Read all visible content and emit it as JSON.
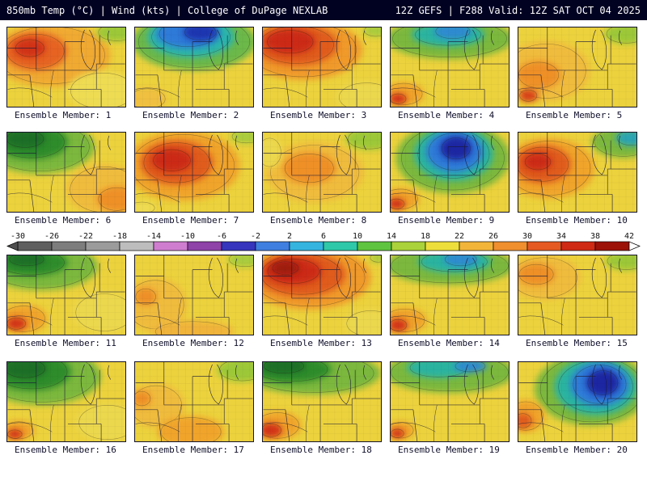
{
  "header": {
    "left": "850mb Temp (°C) | Wind (kts) | College of DuPage NEXLAB",
    "right": "12Z GEFS | F288 Valid: 12Z SAT OCT 04 2025"
  },
  "colorbar": {
    "unit": "°C",
    "ticks": [
      -30,
      -26,
      -22,
      -18,
      -14,
      -10,
      -6,
      -2,
      2,
      6,
      10,
      14,
      18,
      22,
      26,
      30,
      34,
      38,
      42
    ],
    "segment_colors": [
      "#5f5f5f",
      "#7d7d7d",
      "#9b9b9b",
      "#bdbdbd",
      "#cf7ecf",
      "#8f42a8",
      "#3535bd",
      "#3f7fe0",
      "#35b4e0",
      "#2fc8a8",
      "#5fc43f",
      "#aad23a",
      "#eede3c",
      "#f2b53a",
      "#ef8f2e",
      "#e55a22",
      "#cf2a14",
      "#9c1208"
    ],
    "left_arrow_color": "#4f4f4f",
    "right_arrow_color": "#ffffff"
  },
  "palette": {
    "base": "#ecd23c",
    "border_lines": "#1b1b38",
    "header_bg": "#010122",
    "caption_color": "#10102c"
  },
  "panels": [
    {
      "label": "Ensemble Member: 1",
      "blobs": [
        [
          55,
          35,
          75,
          40,
          "#f0aa30"
        ],
        [
          35,
          30,
          40,
          24,
          "#e66420"
        ],
        [
          28,
          26,
          20,
          12,
          "#d03014"
        ],
        [
          138,
          6,
          26,
          12,
          "#9cc838"
        ],
        [
          120,
          80,
          45,
          25,
          "#eedc52"
        ]
      ]
    },
    {
      "label": "Ensemble Member: 2",
      "blobs": [
        [
          74,
          18,
          78,
          36,
          "#6cb848"
        ],
        [
          70,
          12,
          55,
          26,
          "#2cb4ac"
        ],
        [
          66,
          8,
          40,
          18,
          "#2f7ad8"
        ],
        [
          82,
          6,
          22,
          11,
          "#1f35b0"
        ],
        [
          15,
          90,
          25,
          14,
          "#f0c040"
        ]
      ]
    },
    {
      "label": "Ensemble Member: 3",
      "blobs": [
        [
          50,
          28,
          75,
          38,
          "#f09a2c"
        ],
        [
          42,
          22,
          52,
          26,
          "#e05c1e"
        ],
        [
          34,
          18,
          32,
          16,
          "#cc2a12"
        ],
        [
          142,
          4,
          16,
          8,
          "#a8cc3c"
        ],
        [
          130,
          88,
          38,
          20,
          "#ecd84e"
        ]
      ]
    },
    {
      "label": "Ensemble Member: 4",
      "blobs": [
        [
          74,
          14,
          80,
          26,
          "#7cb83e"
        ],
        [
          72,
          9,
          46,
          15,
          "#2cb4a0"
        ],
        [
          78,
          5,
          24,
          10,
          "#2f8ad0"
        ],
        [
          16,
          84,
          26,
          15,
          "#f0a42c"
        ],
        [
          9,
          90,
          11,
          7,
          "#d23214"
        ]
      ]
    },
    {
      "label": "Ensemble Member: 5",
      "blobs": [
        [
          35,
          55,
          55,
          38,
          "#f0bc3e"
        ],
        [
          25,
          60,
          28,
          18,
          "#ee9026"
        ],
        [
          136,
          8,
          28,
          13,
          "#9cc838"
        ],
        [
          12,
          86,
          12,
          8,
          "#d84018"
        ]
      ]
    },
    {
      "label": "Ensemble Member: 6",
      "blobs": [
        [
          40,
          18,
          70,
          34,
          "#7cb83e"
        ],
        [
          30,
          12,
          46,
          22,
          "#2f8c2a"
        ],
        [
          22,
          8,
          26,
          12,
          "#1e6e26"
        ],
        [
          122,
          72,
          48,
          32,
          "#f0bc3e"
        ],
        [
          138,
          84,
          26,
          16,
          "#ee9026"
        ]
      ]
    },
    {
      "label": "Ensemble Member: 7",
      "blobs": [
        [
          60,
          42,
          72,
          44,
          "#f0a42c"
        ],
        [
          52,
          38,
          46,
          28,
          "#e05c1e"
        ],
        [
          46,
          35,
          26,
          15,
          "#cc2a12"
        ],
        [
          140,
          5,
          20,
          9,
          "#a8cc3c"
        ],
        [
          8,
          95,
          18,
          8,
          "#eedc52"
        ]
      ]
    },
    {
      "label": "Ensemble Member: 8",
      "blobs": [
        [
          65,
          50,
          62,
          38,
          "#f0bc3e"
        ],
        [
          58,
          45,
          34,
          20,
          "#ee9026"
        ],
        [
          134,
          8,
          30,
          14,
          "#9cc838"
        ],
        [
          8,
          25,
          16,
          20,
          "#ecd84e"
        ]
      ]
    },
    {
      "label": "Ensemble Member: 9",
      "blobs": [
        [
          78,
          32,
          72,
          45,
          "#7cb83e"
        ],
        [
          79,
          27,
          50,
          34,
          "#2cb4a0"
        ],
        [
          80,
          24,
          36,
          26,
          "#2f7ad8"
        ],
        [
          82,
          20,
          20,
          15,
          "#1f28a2"
        ],
        [
          12,
          84,
          24,
          14,
          "#f0a42c"
        ],
        [
          7,
          90,
          11,
          7,
          "#d23214"
        ]
      ]
    },
    {
      "label": "Ensemble Member: 10",
      "blobs": [
        [
          38,
          45,
          58,
          38,
          "#f0a42c"
        ],
        [
          30,
          40,
          36,
          24,
          "#e05c1e"
        ],
        [
          24,
          37,
          18,
          11,
          "#cc2a12"
        ],
        [
          132,
          12,
          40,
          20,
          "#7cb83e"
        ],
        [
          142,
          7,
          20,
          10,
          "#2ca4b4"
        ]
      ]
    },
    {
      "label": "Ensemble Member: 11",
      "blobs": [
        [
          42,
          14,
          72,
          30,
          "#7cb83e"
        ],
        [
          30,
          9,
          46,
          17,
          "#2f8c2a"
        ],
        [
          24,
          5,
          24,
          9,
          "#1e6e26"
        ],
        [
          20,
          80,
          30,
          18,
          "#f0a42c"
        ],
        [
          11,
          86,
          13,
          8,
          "#d23214"
        ],
        [
          122,
          72,
          40,
          26,
          "#ecd84e"
        ]
      ]
    },
    {
      "label": "Ensemble Member: 12",
      "blobs": [
        [
          25,
          62,
          40,
          34,
          "#f0bc3e"
        ],
        [
          72,
          96,
          52,
          14,
          "#f0b43a"
        ],
        [
          138,
          5,
          22,
          10,
          "#a8cc3c"
        ],
        [
          13,
          52,
          14,
          11,
          "#ee9026"
        ]
      ]
    },
    {
      "label": "Ensemble Member: 13",
      "blobs": [
        [
          58,
          28,
          78,
          40,
          "#f09a2c"
        ],
        [
          48,
          24,
          56,
          28,
          "#e05c1e"
        ],
        [
          38,
          20,
          36,
          17,
          "#cc2a12"
        ],
        [
          28,
          16,
          18,
          9,
          "#9e1c08"
        ],
        [
          136,
          86,
          34,
          18,
          "#ecd84e"
        ],
        [
          145,
          3,
          11,
          6,
          "#a8cc3c"
        ]
      ]
    },
    {
      "label": "Ensemble Member: 14",
      "blobs": [
        [
          74,
          13,
          82,
          24,
          "#7cb83e"
        ],
        [
          80,
          8,
          46,
          14,
          "#2cb4a0"
        ],
        [
          88,
          5,
          22,
          9,
          "#2f8ad0"
        ],
        [
          17,
          82,
          28,
          16,
          "#f0a42c"
        ],
        [
          9,
          88,
          12,
          8,
          "#d23214"
        ]
      ]
    },
    {
      "label": "Ensemble Member: 15",
      "blobs": [
        [
          32,
          28,
          46,
          28,
          "#f0bc3e"
        ],
        [
          22,
          24,
          24,
          14,
          "#ee9026"
        ],
        [
          136,
          7,
          27,
          12,
          "#9cc838"
        ]
      ]
    },
    {
      "label": "Ensemble Member: 16",
      "blobs": [
        [
          42,
          18,
          76,
          36,
          "#7cb83e"
        ],
        [
          30,
          12,
          50,
          24,
          "#2f8c2a"
        ],
        [
          22,
          8,
          28,
          13,
          "#1e6e26"
        ],
        [
          14,
          86,
          20,
          12,
          "#f0a42c"
        ],
        [
          9,
          91,
          10,
          6,
          "#d23214"
        ],
        [
          126,
          76,
          40,
          24,
          "#ecd84e"
        ]
      ]
    },
    {
      "label": "Ensemble Member: 17",
      "blobs": [
        [
          26,
          55,
          36,
          28,
          "#f0bc3e"
        ],
        [
          70,
          88,
          42,
          20,
          "#f0a42c"
        ],
        [
          134,
          10,
          31,
          15,
          "#9cc838"
        ],
        [
          8,
          46,
          12,
          10,
          "#ee9026"
        ]
      ]
    },
    {
      "label": "Ensemble Member: 18",
      "blobs": [
        [
          62,
          14,
          86,
          27,
          "#7cb83e"
        ],
        [
          36,
          9,
          50,
          17,
          "#2f8c2a"
        ],
        [
          26,
          5,
          28,
          10,
          "#1e6e26"
        ],
        [
          18,
          80,
          30,
          18,
          "#f0a42c"
        ],
        [
          10,
          86,
          14,
          9,
          "#d23214"
        ]
      ]
    },
    {
      "label": "Ensemble Member: 19",
      "blobs": [
        [
          74,
          13,
          82,
          26,
          "#7cb83e"
        ],
        [
          60,
          7,
          40,
          13,
          "#2cb4a0"
        ],
        [
          100,
          5,
          21,
          8,
          "#2f8ad0"
        ],
        [
          12,
          86,
          18,
          11,
          "#f0a42c"
        ],
        [
          8,
          90,
          9,
          6,
          "#d23214"
        ]
      ]
    },
    {
      "label": "Ensemble Member: 20",
      "blobs": [
        [
          92,
          34,
          72,
          46,
          "#7cb83e"
        ],
        [
          97,
          31,
          52,
          36,
          "#2cb4a0"
        ],
        [
          102,
          28,
          37,
          27,
          "#2f7ad8"
        ],
        [
          106,
          26,
          21,
          17,
          "#1f28a2"
        ],
        [
          9,
          68,
          24,
          20,
          "#f0a42c"
        ],
        [
          5,
          74,
          12,
          10,
          "#e05c1e"
        ]
      ]
    }
  ]
}
